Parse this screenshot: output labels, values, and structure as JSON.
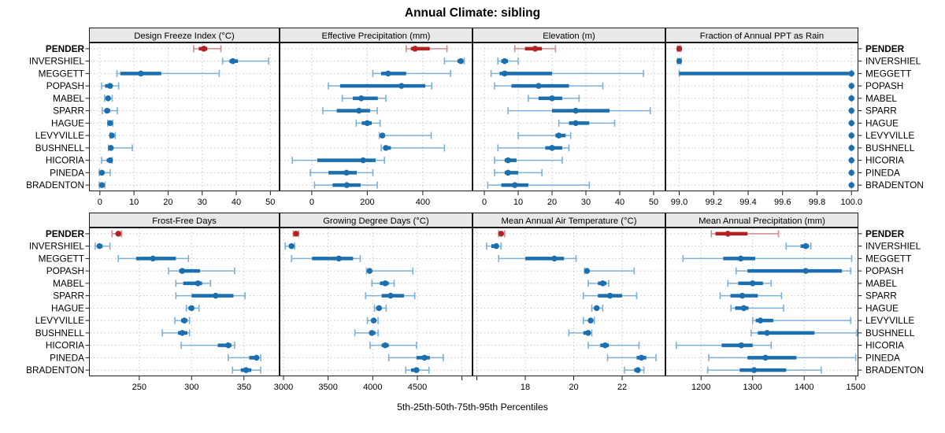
{
  "chart_data": {
    "type": "dot-whisker percentile trellis (5th-25th-50th-75th-95th)",
    "title": "Annual Climate: sibling",
    "footer": "5th-25th-50th-75th-95th Percentiles",
    "legend_position": "none",
    "grid": "dotted",
    "stations": [
      "PENDER",
      "INVERSHIEL",
      "MEGGETT",
      "POPASH",
      "MABEL",
      "SPARR",
      "HAGUE",
      "LEVYVILLE",
      "BUSHNELL",
      "HICORIA",
      "PINEDA",
      "BRADENTON"
    ],
    "highlight_station": "PENDER",
    "colors": {
      "highlight": "#b22222",
      "highlight_light": "#d08b8b",
      "normal": "#1b6fae",
      "normal_light": "#7db0d5",
      "header_fill": "#e8e8e8",
      "panel_border": "#1a1a1a",
      "grid": "#c8c8c8",
      "text": "#000000"
    },
    "panels": [
      {
        "row": 0,
        "title": "Design Freeze Index (°C)",
        "xlim": [
          -3.2,
          52.7
        ],
        "ticks": [
          [
            0,
            "0"
          ],
          [
            10,
            "10"
          ],
          [
            20,
            "20"
          ],
          [
            30,
            "30"
          ],
          [
            40,
            "40"
          ],
          [
            50,
            "50"
          ]
        ],
        "values": {
          "PENDER": [
            27.5,
            29,
            30.5,
            31.5,
            35.5
          ],
          "INVERSHIEL": [
            36,
            38,
            39,
            40.5,
            49.5
          ],
          "MEGGETT": [
            5,
            6,
            12,
            18,
            35
          ],
          "POPASH": [
            0.5,
            1.5,
            3,
            3.5,
            5.5
          ],
          "MABEL": [
            1.4,
            2,
            2.4,
            2.9,
            3.6
          ],
          "SPARR": [
            0.7,
            1.4,
            2.1,
            3,
            5.1
          ],
          "HAGUE": [
            2.3,
            2.7,
            3,
            3.3,
            3.8
          ],
          "LEVYVILLE": [
            3,
            3.2,
            3.5,
            3.9,
            4.5
          ],
          "BUSHNELL": [
            2.5,
            2.8,
            3.2,
            4,
            9.5
          ],
          "HICORIA": [
            0.5,
            2,
            3,
            3.4,
            3.6
          ],
          "PINEDA": [
            -0.2,
            0.2,
            0.6,
            1.1,
            3
          ],
          "BRADENTON": [
            -0.2,
            0.2,
            0.6,
            1,
            1.5
          ]
        }
      },
      {
        "row": 0,
        "title": "Effective Precipitation (mm)",
        "xlim": [
          -116,
          579
        ],
        "ticks": [
          [
            0,
            "0"
          ],
          [
            200,
            "200"
          ],
          [
            400,
            "400"
          ]
        ],
        "values": {
          "PENDER": [
            340,
            357,
            372,
            425,
            487
          ],
          "INVERSHIEL": [
            478,
            525,
            537,
            545,
            549
          ],
          "MEGGETT": [
            220,
            250,
            275,
            340,
            500
          ],
          "POPASH": [
            60,
            102,
            323,
            409,
            432
          ],
          "MABEL": [
            110,
            148,
            178,
            238,
            267
          ],
          "SPARR": [
            40,
            90,
            170,
            210,
            236
          ],
          "HAGUE": [
            160,
            180,
            200,
            216,
            246
          ],
          "LEVYVILLE": [
            243,
            248,
            254,
            264,
            430
          ],
          "BUSHNELL": [
            250,
            258,
            267,
            285,
            478
          ],
          "HICORIA": [
            -70,
            20,
            185,
            230,
            262
          ],
          "PINEDA": [
            -5,
            60,
            125,
            162,
            220
          ],
          "BRADENTON": [
            10,
            75,
            126,
            176,
            236
          ]
        }
      },
      {
        "row": 0,
        "title": "Elevation (m)",
        "xlim": [
          -3.5,
          53.5
        ],
        "ticks": [
          [
            0,
            "0"
          ],
          [
            10,
            "10"
          ],
          [
            20,
            "20"
          ],
          [
            30,
            "30"
          ],
          [
            40,
            "40"
          ],
          [
            50,
            "50"
          ]
        ],
        "values": {
          "PENDER": [
            9,
            12,
            15,
            17,
            21
          ],
          "INVERSHIEL": [
            4,
            5,
            6,
            7,
            10
          ],
          "MEGGETT": [
            2,
            4.5,
            6,
            20,
            47
          ],
          "POPASH": [
            3,
            8,
            16,
            25,
            35
          ],
          "MABEL": [
            13,
            16,
            20,
            23,
            28
          ],
          "SPARR": [
            7,
            20,
            27,
            37,
            49
          ],
          "HAGUE": [
            22,
            25,
            27,
            31,
            38.5
          ],
          "LEVYVILLE": [
            10,
            21,
            22,
            24,
            25.5
          ],
          "BUSHNELL": [
            4,
            18,
            20,
            23,
            25
          ],
          "HICORIA": [
            3,
            6,
            7,
            9.5,
            23
          ],
          "PINEDA": [
            3,
            6,
            7,
            10,
            17
          ],
          "BRADENTON": [
            1,
            5,
            9,
            13,
            31
          ]
        }
      },
      {
        "row": 0,
        "title": "Fraction of Annual PPT as Rain",
        "xlim": [
          98.92,
          100.04
        ],
        "ticks": [
          [
            99.0,
            "99.0"
          ],
          [
            99.2,
            "99.2"
          ],
          [
            99.4,
            "99.4"
          ],
          [
            99.6,
            "99.6"
          ],
          [
            99.8,
            "99.8"
          ],
          [
            100.0,
            "100.0"
          ]
        ],
        "values": {
          "PENDER": [
            98.99,
            99.0,
            99.0,
            99.0,
            99.01
          ],
          "INVERSHIEL": [
            98.99,
            99.0,
            99.0,
            99.0,
            99.01
          ],
          "MEGGETT": [
            99.0,
            99.0,
            100.0,
            100.0,
            100.0
          ],
          "POPASH": [
            100.0,
            100.0,
            100.0,
            100.0,
            100.0
          ],
          "MABEL": [
            100.0,
            100.0,
            100.0,
            100.0,
            100.0
          ],
          "SPARR": [
            100.0,
            100.0,
            100.0,
            100.0,
            100.0
          ],
          "HAGUE": [
            100.0,
            100.0,
            100.0,
            100.0,
            100.0
          ],
          "LEVYVILLE": [
            100.0,
            100.0,
            100.0,
            100.0,
            100.0
          ],
          "BUSHNELL": [
            100.0,
            100.0,
            100.0,
            100.0,
            100.0
          ],
          "HICORIA": [
            100.0,
            100.0,
            100.0,
            100.0,
            100.0
          ],
          "PINEDA": [
            100.0,
            100.0,
            100.0,
            100.0,
            100.0
          ],
          "BRADENTON": [
            100.0,
            100.0,
            100.0,
            100.0,
            100.0
          ]
        }
      },
      {
        "row": 1,
        "title": "Frost-Free Days",
        "xlim": [
          202,
          384
        ],
        "ticks": [
          [
            250,
            "250"
          ],
          [
            300,
            "300"
          ],
          [
            350,
            "350"
          ]
        ],
        "values": {
          "PENDER": [
            224,
            228,
            230,
            231.5,
            233
          ],
          "INVERSHIEL": [
            208,
            210,
            212,
            215,
            222
          ],
          "MEGGETT": [
            230,
            247,
            263,
            285,
            297
          ],
          "POPASH": [
            278,
            288,
            291,
            308,
            341
          ],
          "MABEL": [
            285,
            292,
            306,
            310,
            318
          ],
          "SPARR": [
            285,
            300,
            323,
            340,
            351
          ],
          "HAGUE": [
            295,
            297,
            300,
            302,
            307
          ],
          "LEVYVILLE": [
            284,
            290,
            293,
            296,
            298
          ],
          "BUSHNELL": [
            272,
            287,
            291,
            296,
            298
          ],
          "HICORIA": [
            290,
            325,
            335,
            338,
            341
          ],
          "PINEDA": [
            335,
            355,
            362,
            364,
            366
          ],
          "BRADENTON": [
            339,
            347,
            352,
            357,
            366
          ]
        }
      },
      {
        "row": 1,
        "title": "Growing Degree Days (°C)",
        "xlim": [
          2956,
          5118
        ],
        "ticks": [
          [
            3000,
            "3000"
          ],
          [
            3500,
            "3500"
          ],
          [
            4000,
            "4000"
          ],
          [
            4500,
            "4500"
          ],
          [
            5000,
            ""
          ]
        ],
        "values": {
          "PENDER": [
            3110,
            3130,
            3140,
            3155,
            3170
          ],
          "INVERSHIEL": [
            3020,
            3060,
            3090,
            3110,
            3125
          ],
          "MEGGETT": [
            3090,
            3320,
            3620,
            3780,
            3860
          ],
          "POPASH": [
            3930,
            3945,
            3965,
            3990,
            4450
          ],
          "MABEL": [
            3990,
            4080,
            4140,
            4180,
            4240
          ],
          "SPARR": [
            3920,
            4100,
            4200,
            4350,
            4470
          ],
          "HAGUE": [
            4020,
            4040,
            4070,
            4100,
            4150
          ],
          "LEVYVILLE": [
            3940,
            3990,
            4010,
            4040,
            4060
          ],
          "BUSHNELL": [
            3800,
            3960,
            3990,
            4030,
            4060
          ],
          "HICORIA": [
            3970,
            4100,
            4140,
            4180,
            4490
          ],
          "PINEDA": [
            4180,
            4490,
            4580,
            4640,
            4790
          ],
          "BRADENTON": [
            4370,
            4430,
            4490,
            4520,
            4630
          ]
        }
      },
      {
        "row": 1,
        "title": "Mean Annual Air Temperature (°C)",
        "xlim": [
          15.82,
          23.79
        ],
        "ticks": [
          [
            16,
            ""
          ],
          [
            18,
            "18"
          ],
          [
            20,
            "20"
          ],
          [
            22,
            "22"
          ]
        ],
        "values": {
          "PENDER": [
            16.9,
            16.95,
            17.0,
            17.05,
            17.15
          ],
          "INVERSHIEL": [
            16.4,
            16.6,
            16.8,
            16.9,
            17.0
          ],
          "MEGGETT": [
            16.9,
            18.0,
            19.2,
            19.6,
            20.1
          ],
          "POPASH": [
            20.45,
            20.5,
            20.55,
            20.65,
            22.5
          ],
          "MABEL": [
            20.6,
            21.0,
            21.2,
            21.35,
            21.45
          ],
          "SPARR": [
            20.4,
            21.0,
            21.5,
            22.0,
            22.6
          ],
          "HAGUE": [
            20.75,
            20.85,
            20.95,
            21.05,
            21.2
          ],
          "LEVYVILLE": [
            20.4,
            20.6,
            20.7,
            20.75,
            20.85
          ],
          "BUSHNELL": [
            19.8,
            20.4,
            20.6,
            20.7,
            20.75
          ],
          "HICORIA": [
            20.6,
            21.1,
            21.3,
            21.45,
            22.7
          ],
          "PINEDA": [
            21.4,
            22.6,
            22.8,
            23.0,
            23.4
          ],
          "BRADENTON": [
            22.1,
            22.5,
            22.65,
            22.75,
            22.9
          ]
        }
      },
      {
        "row": 1,
        "title": "Mean Annual Precipitation (mm)",
        "xlim": [
          1131,
          1505
        ],
        "ticks": [
          [
            1200,
            "1200"
          ],
          [
            1300,
            "1300"
          ],
          [
            1400,
            "1400"
          ],
          [
            1500,
            "1500"
          ]
        ],
        "values": {
          "PENDER": [
            1220,
            1228,
            1252,
            1290,
            1350
          ],
          "INVERSHIEL": [
            1365,
            1393,
            1403,
            1409,
            1413
          ],
          "MEGGETT": [
            1165,
            1243,
            1277,
            1305,
            1492
          ],
          "POPASH": [
            1268,
            1290,
            1403,
            1473,
            1490
          ],
          "MABEL": [
            1252,
            1272,
            1300,
            1320,
            1336
          ],
          "SPARR": [
            1237,
            1257,
            1280,
            1310,
            1356
          ],
          "HAGUE": [
            1258,
            1266,
            1283,
            1292,
            1360
          ],
          "LEVYVILLE": [
            1300,
            1306,
            1315,
            1340,
            1490
          ],
          "BUSHNELL": [
            1297,
            1310,
            1328,
            1420,
            1502
          ],
          "HICORIA": [
            1152,
            1240,
            1278,
            1300,
            1336
          ],
          "PINEDA": [
            1215,
            1290,
            1325,
            1385,
            1500
          ],
          "BRADENTON": [
            1213,
            1275,
            1303,
            1365,
            1433
          ]
        }
      }
    ]
  }
}
